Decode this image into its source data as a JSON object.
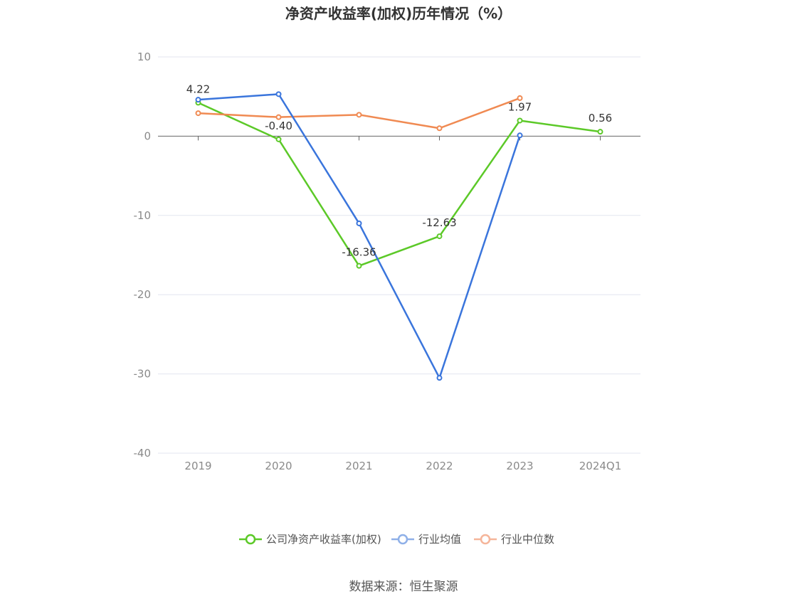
{
  "chart_data": {
    "type": "line",
    "title": "净资产收益率(加权)历年情况（%）",
    "categories": [
      "2019",
      "2020",
      "2021",
      "2022",
      "2023",
      "2024Q1"
    ],
    "ylim": [
      -40,
      10
    ],
    "yticks": [
      10,
      0,
      -10,
      -20,
      -30,
      -40
    ],
    "grid": true,
    "legend_position": "bottom-center",
    "series": [
      {
        "name": "公司净资产收益率(加权)",
        "color": "#5cc928",
        "values": [
          4.22,
          -0.4,
          -16.36,
          -12.63,
          1.97,
          0.56
        ],
        "labels": [
          "4.22",
          "-0.40",
          "-16.36",
          "-12.63",
          "1.97",
          "0.56"
        ]
      },
      {
        "name": "行业均值",
        "color": "#3a75dc",
        "values": [
          4.6,
          5.3,
          -11.0,
          -30.5,
          0.1,
          null
        ]
      },
      {
        "name": "行业中位数",
        "color": "#f08a52",
        "values": [
          2.9,
          2.4,
          2.7,
          1.0,
          4.8,
          null
        ]
      }
    ]
  },
  "legend": {
    "items": [
      {
        "label": "公司净资产收益率(加权)",
        "color": "#5cc928"
      },
      {
        "label": "行业均值",
        "color": "#8fb0e8"
      },
      {
        "label": "行业中位数",
        "color": "#f5b59a"
      }
    ]
  },
  "source": "数据来源：恒生聚源"
}
